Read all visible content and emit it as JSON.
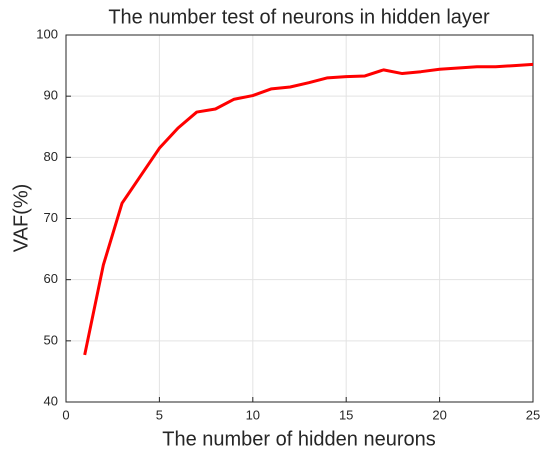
{
  "chart_data": {
    "type": "line",
    "title": "The number test of neurons in hidden layer",
    "x_label": "The number of hidden neurons",
    "y_label": "VAF(%)",
    "x": [
      1,
      2,
      3,
      4,
      5,
      6,
      7,
      8,
      9,
      10,
      11,
      12,
      13,
      14,
      15,
      16,
      17,
      18,
      19,
      20,
      21,
      22,
      23,
      24,
      25
    ],
    "series": [
      {
        "name": "VAF",
        "color": "#ff0000",
        "values": [
          47.7,
          62.4,
          72.5,
          77,
          81.5,
          84.8,
          87.4,
          87.9,
          89.5,
          90.1,
          91.2,
          91.5,
          92.2,
          93.0,
          93.2,
          93.3,
          94.3,
          93.7,
          94.0,
          94.4,
          94.6,
          94.8,
          94.8,
          95.0,
          95.2
        ]
      }
    ],
    "xlim": [
      0,
      25
    ],
    "xticks": [
      0,
      5,
      10,
      15,
      20,
      25
    ],
    "ylim": [
      40,
      100
    ],
    "yticks": [
      40,
      50,
      60,
      70,
      80,
      90,
      100
    ],
    "grid": true
  }
}
